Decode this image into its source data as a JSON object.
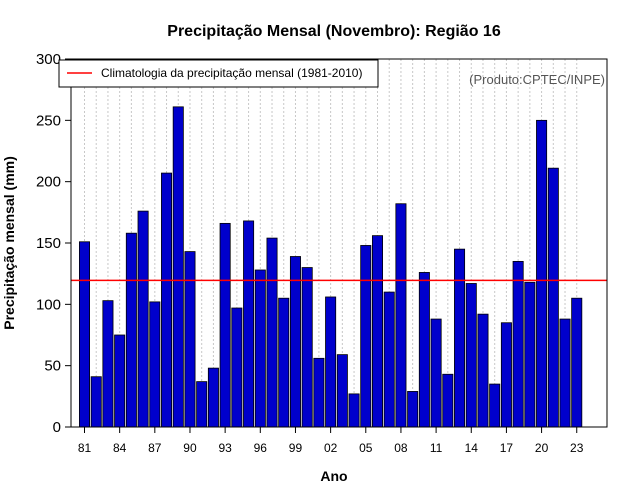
{
  "chart_data": {
    "type": "bar",
    "title": "Precipitação Mensal (Novembro): Região 16",
    "xlabel": "Ano",
    "ylabel": "Precipitação mensal (mm)",
    "ylim": [
      0,
      300
    ],
    "yticks": [
      0,
      50,
      100,
      150,
      200,
      250,
      300
    ],
    "credit": "(Produto:CPTEC/INPE)",
    "grid": "vertical dotted",
    "legend_position": "top-left",
    "categories": [
      "1981",
      "1982",
      "1983",
      "1984",
      "1985",
      "1986",
      "1987",
      "1988",
      "1989",
      "1990",
      "1991",
      "1992",
      "1993",
      "1994",
      "1995",
      "1996",
      "1997",
      "1998",
      "1999",
      "2000",
      "2001",
      "2002",
      "2003",
      "2004",
      "2005",
      "2006",
      "2007",
      "2008",
      "2009",
      "2010",
      "2011",
      "2012",
      "2013",
      "2014",
      "2015",
      "2016",
      "2017",
      "2018",
      "2019",
      "2020",
      "2021",
      "2022",
      "2023"
    ],
    "xtick_labels": [
      {
        "index": 0,
        "label": "81"
      },
      {
        "index": 3,
        "label": "84"
      },
      {
        "index": 6,
        "label": "87"
      },
      {
        "index": 9,
        "label": "90"
      },
      {
        "index": 12,
        "label": "93"
      },
      {
        "index": 15,
        "label": "96"
      },
      {
        "index": 18,
        "label": "99"
      },
      {
        "index": 21,
        "label": "02"
      },
      {
        "index": 24,
        "label": "05"
      },
      {
        "index": 27,
        "label": "08"
      },
      {
        "index": 30,
        "label": "11"
      },
      {
        "index": 33,
        "label": "14"
      },
      {
        "index": 36,
        "label": "17"
      },
      {
        "index": 39,
        "label": "20"
      },
      {
        "index": 42,
        "label": "23"
      }
    ],
    "series": [
      {
        "name": "Precipitação mensal",
        "color": "#0000cc",
        "values": [
          151,
          41,
          103,
          75,
          158,
          176,
          102,
          207,
          261,
          143,
          37,
          48,
          166,
          97,
          168,
          128,
          154,
          105,
          139,
          130,
          56,
          106,
          59,
          27,
          148,
          156,
          110,
          182,
          29,
          126,
          88,
          43,
          145,
          117,
          92,
          35,
          85,
          135,
          118,
          250,
          211,
          88,
          105
        ]
      }
    ],
    "climatology": {
      "label": "Climatologia da precipitação mensal (1981-2010)",
      "value": 119.5,
      "color": "#ff0000"
    }
  }
}
